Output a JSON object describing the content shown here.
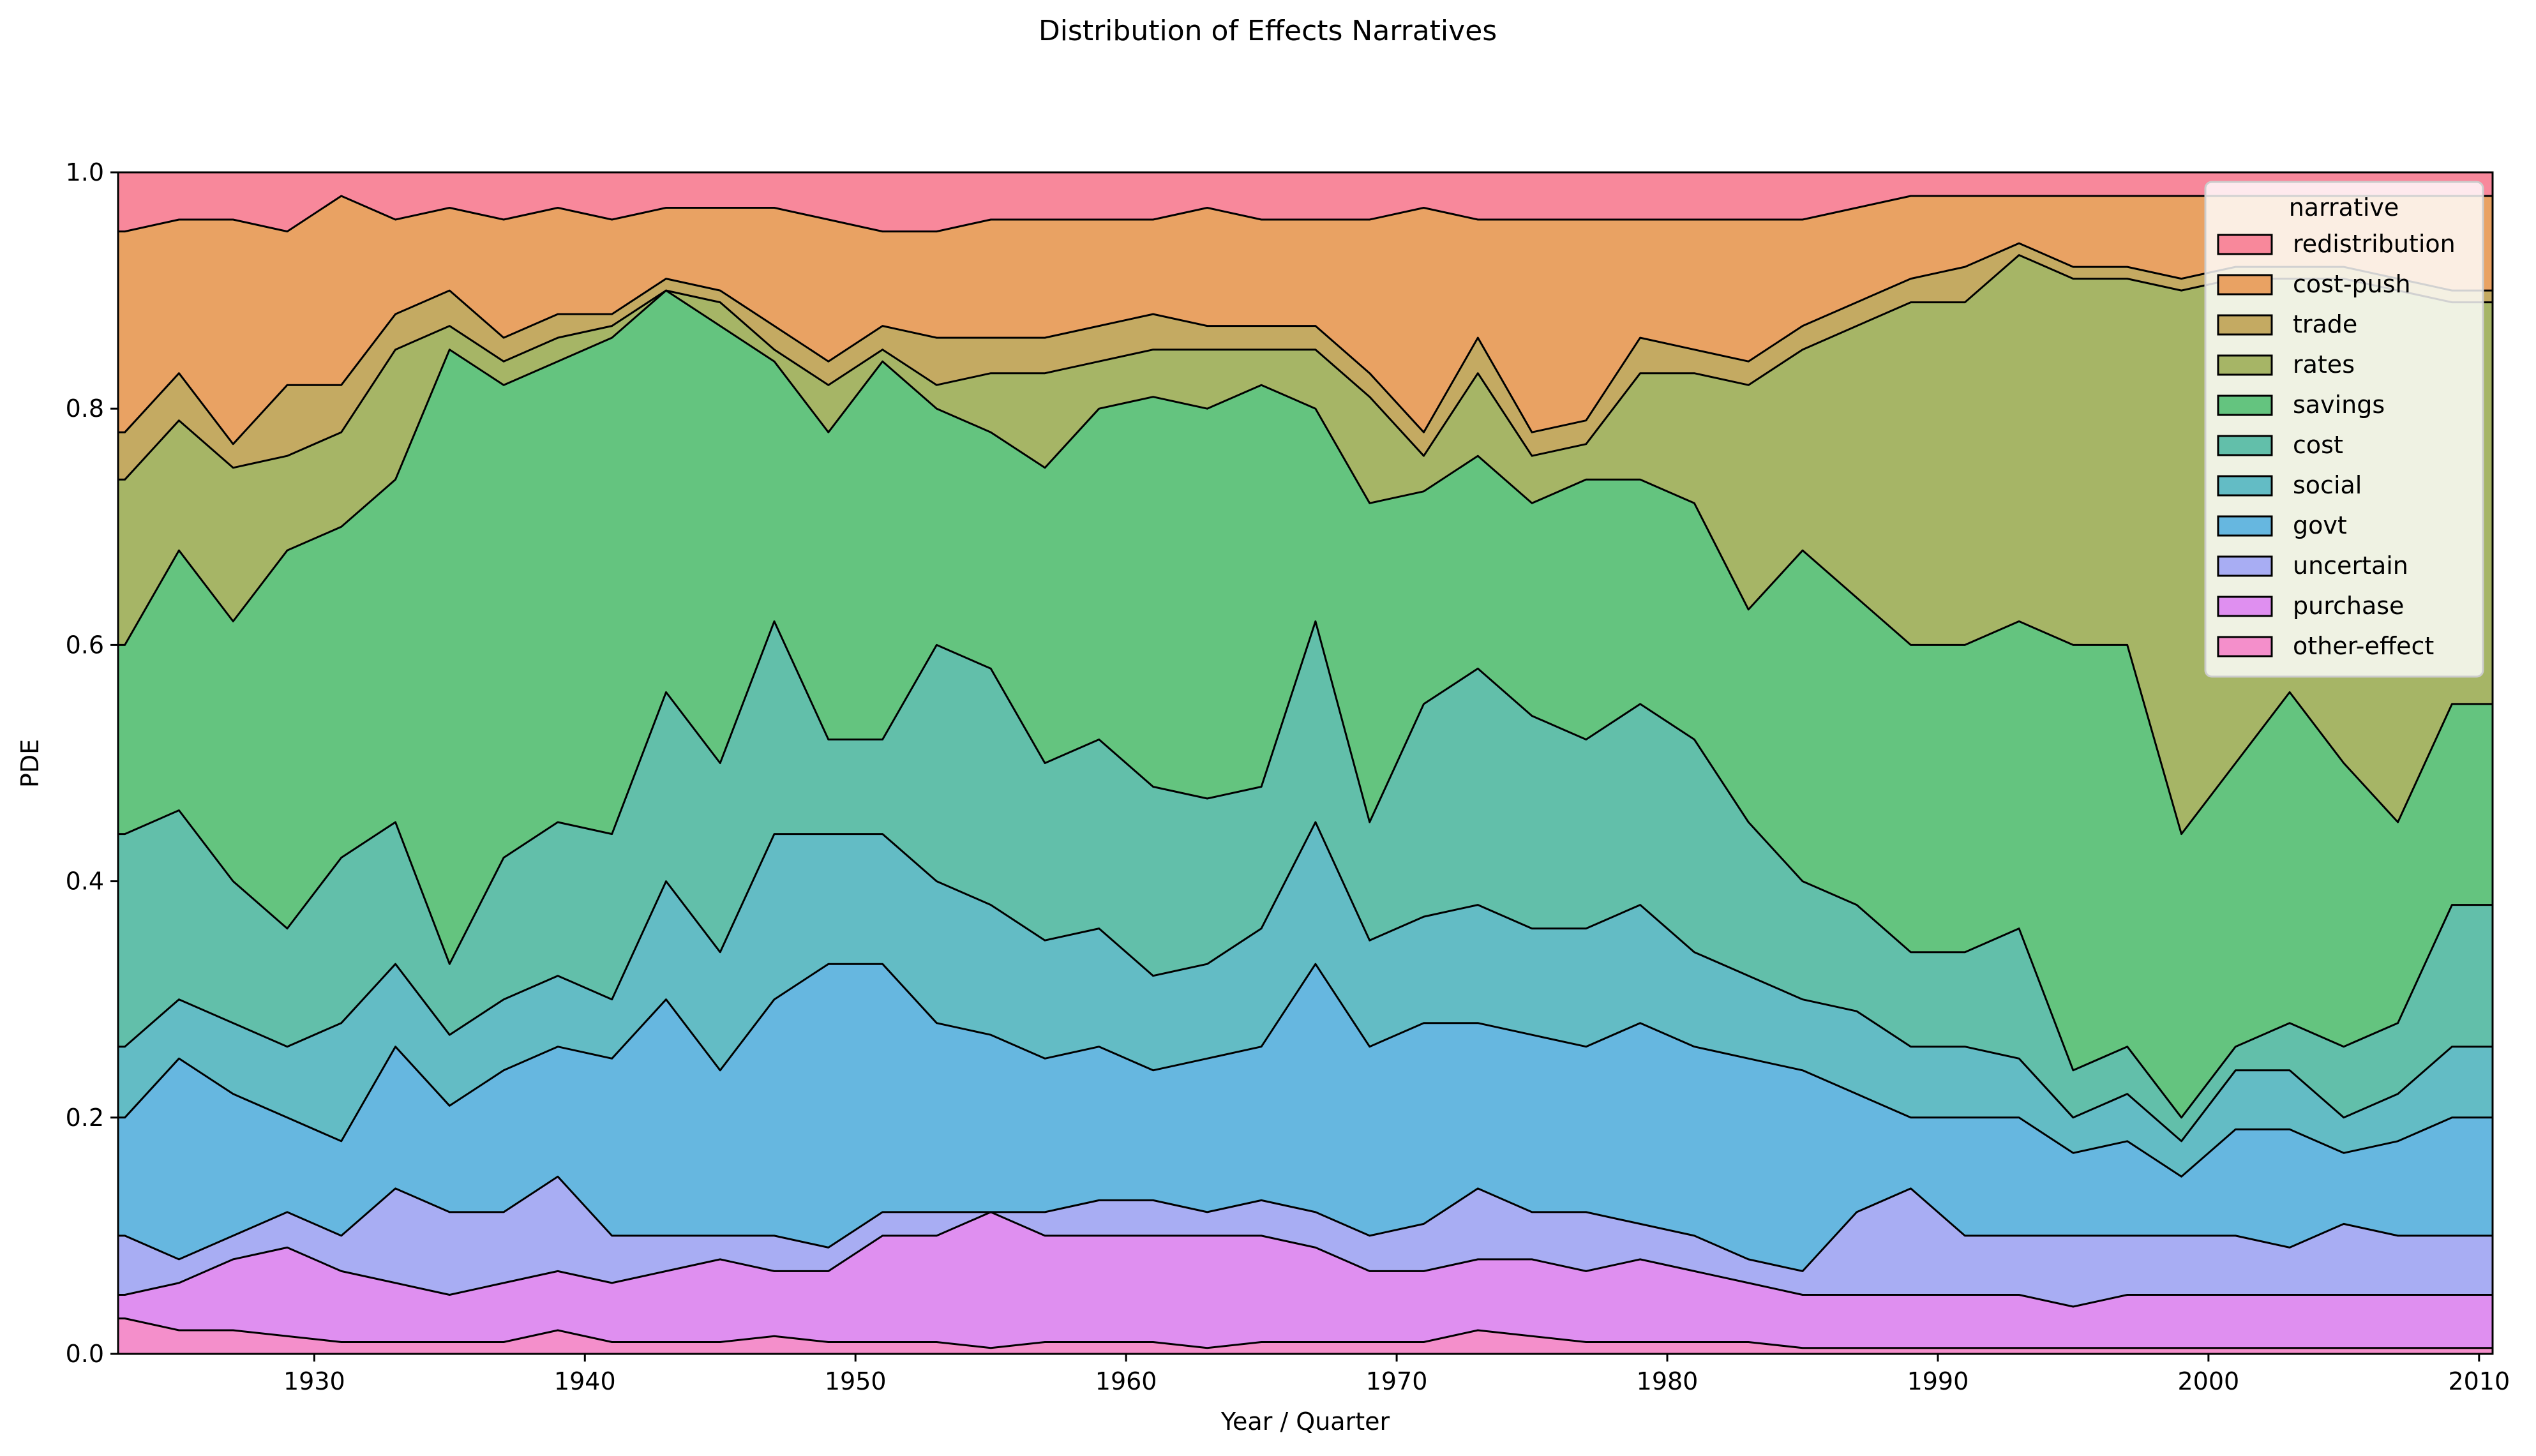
{
  "chart_data": {
    "type": "area",
    "stacked": true,
    "normalized": true,
    "title": "Distribution of Effects Narratives",
    "xlabel": "Year / Quarter",
    "ylabel": "PDE",
    "xlim": [
      1922.75,
      2010.5
    ],
    "ylim": [
      0,
      1
    ],
    "x_ticks": [
      1930,
      1940,
      1950,
      1960,
      1970,
      1980,
      1990,
      2000,
      2010
    ],
    "y_ticks": [
      0.0,
      0.2,
      0.4,
      0.6,
      0.8,
      1.0
    ],
    "y_tick_labels": [
      "0.0",
      "0.2",
      "0.4",
      "0.6",
      "0.8",
      "1.0"
    ],
    "grid": false,
    "legend": {
      "title": "narrative",
      "placement": "top-right"
    },
    "series_order_bottom_to_top": [
      "other-effect",
      "purchase",
      "uncertain",
      "govt",
      "social",
      "cost",
      "savings",
      "rates",
      "trade",
      "cost-push",
      "redistribution"
    ],
    "x": [
      1923,
      1925,
      1927,
      1929,
      1931,
      1933,
      1935,
      1937,
      1939,
      1941,
      1943,
      1945,
      1947,
      1949,
      1951,
      1953,
      1955,
      1957,
      1959,
      1961,
      1963,
      1965,
      1967,
      1969,
      1971,
      1973,
      1975,
      1977,
      1979,
      1981,
      1983,
      1985,
      1987,
      1989,
      1991,
      1993,
      1995,
      1997,
      1999,
      2001,
      2003,
      2005,
      2007,
      2009
    ],
    "series": [
      {
        "name": "redistribution",
        "color": "#f8889b",
        "cumulative_top": [
          1.0,
          1.0,
          1.0,
          1.0,
          1.0,
          1.0,
          1.0,
          1.0,
          1.0,
          1.0,
          1.0,
          1.0,
          1.0,
          1.0,
          1.0,
          1.0,
          1.0,
          1.0,
          1.0,
          1.0,
          1.0,
          1.0,
          1.0,
          1.0,
          1.0,
          1.0,
          1.0,
          1.0,
          1.0,
          1.0,
          1.0,
          1.0,
          1.0,
          1.0,
          1.0,
          1.0,
          1.0,
          1.0,
          1.0,
          1.0,
          1.0,
          1.0,
          1.0,
          1.0
        ]
      },
      {
        "name": "cost-push",
        "color": "#e9a263",
        "cumulative_top": [
          0.95,
          0.96,
          0.96,
          0.95,
          0.98,
          0.96,
          0.97,
          0.96,
          0.97,
          0.96,
          0.97,
          0.97,
          0.97,
          0.96,
          0.95,
          0.95,
          0.96,
          0.96,
          0.96,
          0.96,
          0.97,
          0.96,
          0.96,
          0.96,
          0.97,
          0.96,
          0.96,
          0.96,
          0.96,
          0.96,
          0.96,
          0.96,
          0.97,
          0.98,
          0.98,
          0.98,
          0.98,
          0.98,
          0.98,
          0.98,
          0.98,
          0.98,
          0.98,
          0.98
        ]
      },
      {
        "name": "trade",
        "color": "#c4aa62",
        "cumulative_top": [
          0.78,
          0.83,
          0.77,
          0.82,
          0.82,
          0.88,
          0.9,
          0.86,
          0.88,
          0.88,
          0.91,
          0.9,
          0.87,
          0.84,
          0.87,
          0.86,
          0.86,
          0.86,
          0.87,
          0.88,
          0.87,
          0.87,
          0.87,
          0.83,
          0.78,
          0.86,
          0.78,
          0.79,
          0.86,
          0.85,
          0.84,
          0.87,
          0.89,
          0.91,
          0.92,
          0.94,
          0.92,
          0.92,
          0.91,
          0.92,
          0.92,
          0.92,
          0.91,
          0.9
        ]
      },
      {
        "name": "rates",
        "color": "#a6b566",
        "cumulative_top": [
          0.74,
          0.79,
          0.75,
          0.76,
          0.78,
          0.85,
          0.87,
          0.84,
          0.86,
          0.87,
          0.9,
          0.89,
          0.85,
          0.82,
          0.85,
          0.82,
          0.83,
          0.83,
          0.84,
          0.85,
          0.85,
          0.85,
          0.85,
          0.81,
          0.76,
          0.83,
          0.76,
          0.77,
          0.83,
          0.83,
          0.82,
          0.85,
          0.87,
          0.89,
          0.89,
          0.93,
          0.91,
          0.91,
          0.9,
          0.91,
          0.91,
          0.91,
          0.9,
          0.89
        ]
      },
      {
        "name": "savings",
        "color": "#64c47f",
        "cumulative_top": [
          0.6,
          0.68,
          0.62,
          0.68,
          0.7,
          0.74,
          0.85,
          0.82,
          0.84,
          0.86,
          0.9,
          0.87,
          0.84,
          0.78,
          0.84,
          0.8,
          0.78,
          0.75,
          0.8,
          0.81,
          0.8,
          0.82,
          0.8,
          0.72,
          0.73,
          0.76,
          0.72,
          0.74,
          0.74,
          0.72,
          0.63,
          0.68,
          0.64,
          0.6,
          0.6,
          0.62,
          0.6,
          0.6,
          0.44,
          0.5,
          0.56,
          0.5,
          0.45,
          0.55
        ]
      },
      {
        "name": "cost",
        "color": "#62bfaa",
        "cumulative_top": [
          0.44,
          0.46,
          0.4,
          0.36,
          0.42,
          0.45,
          0.33,
          0.42,
          0.45,
          0.44,
          0.56,
          0.5,
          0.62,
          0.52,
          0.52,
          0.6,
          0.58,
          0.5,
          0.52,
          0.48,
          0.47,
          0.48,
          0.62,
          0.45,
          0.55,
          0.58,
          0.54,
          0.52,
          0.55,
          0.52,
          0.45,
          0.4,
          0.38,
          0.34,
          0.34,
          0.36,
          0.24,
          0.26,
          0.2,
          0.26,
          0.28,
          0.26,
          0.28,
          0.38
        ]
      },
      {
        "name": "social",
        "color": "#63bcc5",
        "cumulative_top": [
          0.26,
          0.3,
          0.28,
          0.26,
          0.28,
          0.33,
          0.27,
          0.3,
          0.32,
          0.3,
          0.4,
          0.34,
          0.44,
          0.44,
          0.44,
          0.4,
          0.38,
          0.35,
          0.36,
          0.32,
          0.33,
          0.36,
          0.45,
          0.35,
          0.37,
          0.38,
          0.36,
          0.36,
          0.38,
          0.34,
          0.32,
          0.3,
          0.29,
          0.26,
          0.26,
          0.25,
          0.2,
          0.22,
          0.18,
          0.24,
          0.24,
          0.2,
          0.22,
          0.26
        ]
      },
      {
        "name": "govt",
        "color": "#66b7e0",
        "cumulative_top": [
          0.2,
          0.25,
          0.22,
          0.2,
          0.18,
          0.26,
          0.21,
          0.24,
          0.26,
          0.25,
          0.3,
          0.24,
          0.3,
          0.33,
          0.33,
          0.28,
          0.27,
          0.25,
          0.26,
          0.24,
          0.25,
          0.26,
          0.33,
          0.26,
          0.28,
          0.28,
          0.27,
          0.26,
          0.28,
          0.26,
          0.25,
          0.24,
          0.22,
          0.2,
          0.2,
          0.2,
          0.17,
          0.18,
          0.15,
          0.19,
          0.19,
          0.17,
          0.18,
          0.2
        ]
      },
      {
        "name": "uncertain",
        "color": "#a8adf3",
        "cumulative_top": [
          0.1,
          0.08,
          0.1,
          0.12,
          0.1,
          0.14,
          0.12,
          0.12,
          0.15,
          0.1,
          0.1,
          0.1,
          0.1,
          0.09,
          0.12,
          0.12,
          0.12,
          0.12,
          0.13,
          0.13,
          0.12,
          0.13,
          0.12,
          0.1,
          0.11,
          0.14,
          0.12,
          0.12,
          0.11,
          0.1,
          0.08,
          0.07,
          0.12,
          0.14,
          0.1,
          0.1,
          0.1,
          0.1,
          0.1,
          0.1,
          0.09,
          0.11,
          0.1,
          0.1
        ]
      },
      {
        "name": "purchase",
        "color": "#df8ff0",
        "cumulative_top": [
          0.05,
          0.06,
          0.08,
          0.09,
          0.07,
          0.06,
          0.05,
          0.06,
          0.07,
          0.06,
          0.07,
          0.08,
          0.07,
          0.07,
          0.1,
          0.1,
          0.12,
          0.1,
          0.1,
          0.1,
          0.1,
          0.1,
          0.09,
          0.07,
          0.07,
          0.08,
          0.08,
          0.07,
          0.08,
          0.07,
          0.06,
          0.05,
          0.05,
          0.05,
          0.05,
          0.05,
          0.04,
          0.05,
          0.05,
          0.05,
          0.05,
          0.05,
          0.05,
          0.05
        ]
      },
      {
        "name": "other-effect",
        "color": "#f48fcb",
        "cumulative_top": [
          0.03,
          0.02,
          0.02,
          0.015,
          0.01,
          0.01,
          0.01,
          0.01,
          0.02,
          0.01,
          0.01,
          0.01,
          0.015,
          0.01,
          0.01,
          0.01,
          0.005,
          0.01,
          0.01,
          0.01,
          0.005,
          0.01,
          0.01,
          0.01,
          0.01,
          0.02,
          0.015,
          0.01,
          0.01,
          0.01,
          0.01,
          0.005,
          0.005,
          0.005,
          0.005,
          0.005,
          0.005,
          0.005,
          0.005,
          0.005,
          0.005,
          0.005,
          0.005,
          0.005
        ]
      }
    ]
  }
}
